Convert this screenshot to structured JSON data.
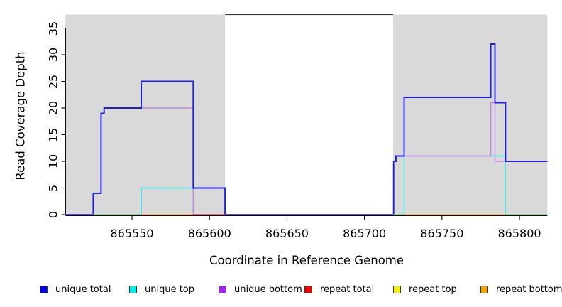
{
  "figure": {
    "background": "#ffffff",
    "plot_area_background": "#ffffff",
    "shaded_region_color": "#d9d9d9",
    "axis_color": "#000000"
  },
  "chart_data": {
    "type": "line",
    "step": true,
    "title": "",
    "xlabel": "Coordinate in Reference Genome",
    "ylabel": "Read Coverage Depth",
    "xlim": [
      865507,
      865818
    ],
    "ylim": [
      0,
      37.6
    ],
    "xticks": [
      865550,
      865600,
      865650,
      865700,
      865750,
      865800
    ],
    "yticks": [
      0,
      5,
      10,
      15,
      20,
      25,
      30,
      35
    ],
    "grid": false,
    "legend_position": "bottom",
    "shaded_regions": [
      {
        "from": 865507,
        "to": 865610,
        "color": "#d9d9d9"
      },
      {
        "from": 865718.5,
        "to": 865818,
        "color": "#d9d9d9"
      }
    ],
    "series": [
      {
        "name": "unique total",
        "legend_color": "#0000ee",
        "line_color": "#1f1fe6",
        "line_width": 1.9,
        "z": 3,
        "steps": [
          [
            865507,
            0
          ],
          [
            865525,
            4
          ],
          [
            865530,
            19
          ],
          [
            865532,
            20
          ],
          [
            865556,
            25
          ],
          [
            865589.5,
            5
          ],
          [
            865610,
            0
          ],
          [
            865718.8,
            10
          ],
          [
            865720.3,
            11
          ],
          [
            865725.6,
            22
          ],
          [
            865781.5,
            32
          ],
          [
            865784.2,
            21
          ],
          [
            865791,
            10
          ],
          [
            865818,
            10
          ]
        ]
      },
      {
        "name": "unique top",
        "legend_color": "#00eeee",
        "line_color": "#3adfe0",
        "line_width": 1.4,
        "z": 1,
        "steps": [
          [
            865507,
            0
          ],
          [
            865556,
            5
          ],
          [
            865610,
            0
          ],
          [
            865725.6,
            11
          ],
          [
            865790.8,
            0
          ],
          [
            865818,
            0
          ]
        ]
      },
      {
        "name": "unique bottom",
        "legend_color": "#a020f0",
        "line_color": "#bf86e3",
        "line_width": 1.4,
        "z": 2,
        "steps": [
          [
            865507,
            0
          ],
          [
            865525,
            4
          ],
          [
            865530,
            19
          ],
          [
            865532,
            20
          ],
          [
            865589.5,
            0
          ],
          [
            865718.8,
            10
          ],
          [
            865720.3,
            11
          ],
          [
            865781.5,
            21
          ],
          [
            865784.2,
            10
          ],
          [
            865818,
            10
          ]
        ]
      },
      {
        "name": "repeat total",
        "legend_color": "#ee0000",
        "line_color": null,
        "line_width": 1.4,
        "z": 0,
        "steps": [
          [
            865507,
            0
          ],
          [
            865818,
            0
          ]
        ]
      },
      {
        "name": "repeat top",
        "legend_color": "#f2f200",
        "line_color": null,
        "line_width": 1.4,
        "z": 0,
        "steps": [
          [
            865507,
            0
          ],
          [
            865818,
            0
          ]
        ]
      },
      {
        "name": "repeat bottom",
        "legend_color": "#f0a000",
        "line_color": null,
        "line_width": 1.4,
        "z": 0,
        "steps": [
          [
            865507,
            0
          ],
          [
            865818,
            0
          ]
        ]
      }
    ],
    "zero_line_segments": [
      {
        "from": 865507,
        "to": 865525,
        "color": "#7b6aee"
      },
      {
        "from": 865525,
        "to": 865556,
        "color": "#8fcb90"
      },
      {
        "from": 865556,
        "to": 865589.5,
        "color": "#ffa030"
      },
      {
        "from": 865589.5,
        "to": 865610,
        "color": "#c85066"
      },
      {
        "from": 865610,
        "to": 865718.8,
        "color": "#7b6aee"
      },
      {
        "from": 865718.8,
        "to": 865725.6,
        "color": "#8fcb90"
      },
      {
        "from": 865725.6,
        "to": 865790.8,
        "color": "#ffa030"
      },
      {
        "from": 865790.8,
        "to": 865818,
        "color": "#8fcb90"
      }
    ]
  }
}
